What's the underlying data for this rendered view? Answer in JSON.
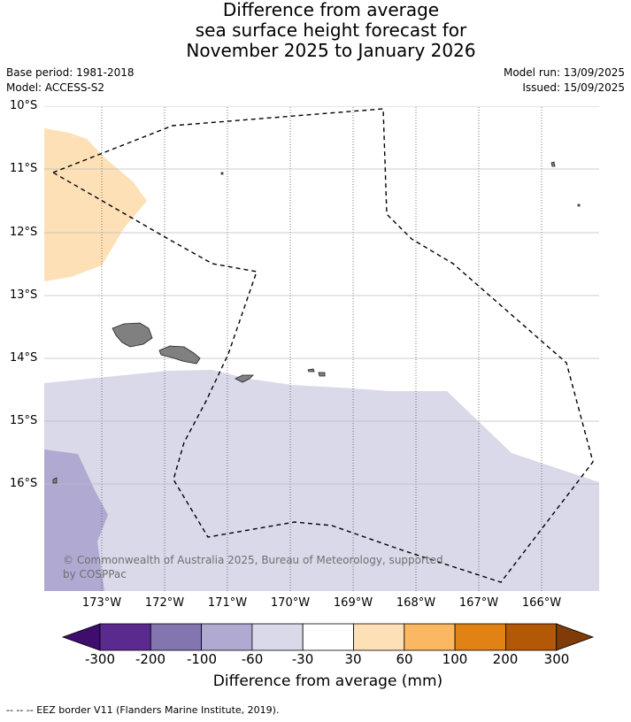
{
  "title": {
    "line1": "Difference from average",
    "line2": "sea surface height forecast for",
    "line3": "November 2025 to January 2026"
  },
  "meta": {
    "base_period": "Base period: 1981-2018",
    "model": "Model: ACCESS-S2",
    "model_run": "Model run: 13/09/2025",
    "issued": "Issued: 15/09/2025"
  },
  "lat_labels": [
    "10°S",
    "11°S",
    "12°S",
    "13°S",
    "14°S",
    "15°S",
    "16°S"
  ],
  "lon_labels": [
    "173°W",
    "172°W",
    "171°W",
    "170°W",
    "169°W",
    "168°W",
    "167°W",
    "166°W"
  ],
  "copyright": "© Commonwealth of Australia 2025, Bureau of Meteorology, supported by COSPPac",
  "colorbar": {
    "tick_labels": [
      "-300",
      "-200",
      "-100",
      "-60",
      "-30",
      "30",
      "60",
      "100",
      "200",
      "300"
    ],
    "title": "Difference from average (mm)",
    "colors": [
      "#3f0d6b",
      "#5b2a8e",
      "#8275b0",
      "#b0aad3",
      "#d9d9ea",
      "#ffffff",
      "#fee0b6",
      "#fbb862",
      "#e08214",
      "#b35806",
      "#7f3b08"
    ]
  },
  "colors": {
    "orange_light": "#fee0b6",
    "lavender": "#d9d9ea",
    "lavender_dark": "#b0aad3",
    "land": "#808080"
  },
  "footer": "--  --  -- EEZ border V11 (Flanders Marine Institute, 2019)."
}
